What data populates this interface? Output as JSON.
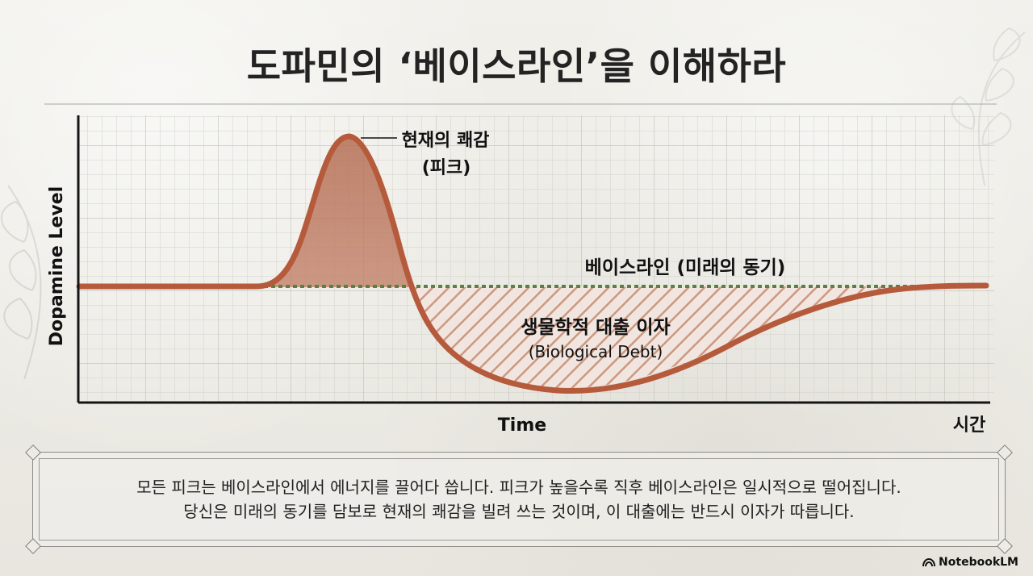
{
  "title": "도파민의 ‘베이스라인’을 이해하라",
  "chart": {
    "y_axis_label": "Dopamine Level",
    "x_axis_label": "Time",
    "x_axis_label_korean": "시간",
    "peak_label_line1": "현재의 쾌감",
    "peak_label_line2": "(피크)",
    "baseline_label": "베이스라인 (미래의 동기)",
    "debt_label_line1": "생물학적 대출 이자",
    "debt_label_line2": "(Biological Debt)"
  },
  "caption": {
    "line1": "모든 피크는 베이스라인에서 에너지를 끌어다 씁니다. 피크가 높을수록 직후 베이스라인은 일시적으로 떨어집니다.",
    "line2": "당신은 미래의 동기를 담보로 현재의 쾌감을 빌려 쓰는 것이며, 이 대출에는 반드시 이자가 따릅니다."
  },
  "brand": {
    "name": "NotebookLM"
  },
  "colors": {
    "curve": "#b65a3c",
    "peak_fill": "#b46b52",
    "baseline": "#4f7a44",
    "grid": "#c8c8c2",
    "axis": "#151515",
    "background": "#ecebe6"
  }
}
